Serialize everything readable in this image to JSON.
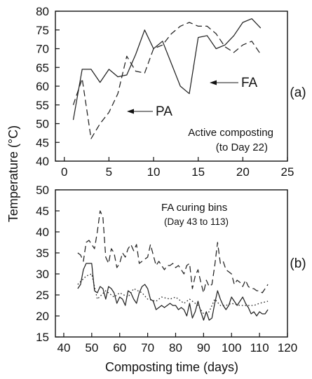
{
  "chart_data": [
    {
      "type": "line",
      "panel_label": "(a)",
      "xlim": [
        -1,
        25
      ],
      "ylim": [
        40,
        80
      ],
      "xticks": [
        0,
        5,
        10,
        15,
        20,
        25
      ],
      "yticks": [
        40,
        45,
        50,
        55,
        60,
        65,
        70,
        75,
        80
      ],
      "annotation_lines": [
        "Active composting",
        "(to Day 22)"
      ],
      "series": [
        {
          "name": "FA",
          "style": "solid",
          "x": [
            1,
            2,
            3,
            4,
            5,
            6,
            7,
            8,
            9,
            10,
            11,
            12,
            13,
            14,
            15,
            16,
            17,
            18,
            19,
            20,
            21,
            22
          ],
          "y": [
            51,
            64.5,
            64.5,
            61,
            64.5,
            62.5,
            63,
            68.5,
            75,
            70,
            72,
            66,
            60,
            58,
            73,
            73.5,
            70,
            71,
            73.5,
            77,
            78,
            75.5
          ]
        },
        {
          "name": "PA",
          "style": "dashed",
          "x": [
            1,
            2,
            3,
            4,
            5,
            6,
            7,
            8,
            9,
            10,
            11,
            12,
            13,
            14,
            15,
            16,
            17,
            18,
            19,
            20,
            21,
            22
          ],
          "y": [
            55,
            62,
            46,
            50,
            53,
            58,
            68,
            64,
            63.5,
            70,
            71,
            74,
            76,
            77,
            76,
            76,
            74,
            70.5,
            69,
            71,
            72,
            68.5
          ]
        }
      ]
    },
    {
      "type": "line",
      "panel_label": "(b)",
      "xlim": [
        37,
        120
      ],
      "ylim": [
        15,
        50
      ],
      "xticks": [
        40,
        50,
        60,
        70,
        80,
        90,
        100,
        110,
        120
      ],
      "yticks": [
        15,
        20,
        25,
        30,
        35,
        40,
        45,
        50
      ],
      "annotation_lines": [
        "FA curing bins",
        "(Day 43 to 113)"
      ],
      "series": [
        {
          "style": "dashed",
          "x": [
            45,
            46,
            47,
            48,
            49,
            50,
            51,
            52,
            53,
            54,
            55,
            56,
            57,
            58,
            59,
            60,
            61,
            62,
            63,
            64,
            65,
            66,
            67,
            68,
            69,
            70,
            71,
            72,
            73,
            74,
            75,
            76,
            77,
            78,
            79,
            80,
            81,
            82,
            83,
            84,
            85,
            86,
            87,
            88,
            89,
            90,
            91,
            92,
            93,
            94,
            95,
            96,
            97,
            98,
            99,
            100,
            101,
            102,
            103,
            104,
            105,
            106,
            107,
            108,
            109,
            110,
            111,
            112,
            113
          ],
          "y": [
            35,
            34.5,
            33,
            37.5,
            38,
            37,
            36,
            40,
            45,
            43.5,
            34,
            32.5,
            36,
            35,
            31.5,
            32.5,
            35,
            34,
            36,
            37,
            35.5,
            37,
            32.5,
            33,
            33.5,
            34,
            37,
            34.5,
            32,
            33,
            32,
            31,
            32,
            32,
            32.5,
            31.5,
            32,
            31,
            30,
            32,
            32.5,
            26.5,
            29.5,
            31,
            28,
            25.5,
            28.5,
            27,
            27.5,
            32,
            37.5,
            32.5,
            33,
            31,
            30.5,
            30,
            27.5,
            28.5,
            28,
            27,
            28.5,
            27,
            26.5,
            26.5,
            26,
            26,
            25.5,
            26.5,
            27.5
          ]
        },
        {
          "style": "solid",
          "x": [
            45,
            46,
            47,
            48,
            49,
            50,
            51,
            52,
            53,
            54,
            55,
            56,
            57,
            58,
            59,
            60,
            61,
            62,
            63,
            64,
            65,
            66,
            67,
            68,
            69,
            70,
            71,
            72,
            73,
            74,
            75,
            76,
            77,
            78,
            79,
            80,
            81,
            82,
            83,
            84,
            85,
            86,
            87,
            88,
            89,
            90,
            91,
            92,
            93,
            94,
            95,
            96,
            97,
            98,
            99,
            100,
            101,
            102,
            103,
            104,
            105,
            106,
            107,
            108,
            109,
            110,
            111,
            112,
            113
          ],
          "y": [
            26.5,
            27.5,
            31,
            32.5,
            32.5,
            32.5,
            26,
            25.5,
            27,
            26.5,
            24,
            27,
            26.5,
            25.5,
            23,
            24.5,
            24,
            22.5,
            26,
            25.5,
            24,
            23,
            25.5,
            27,
            27.5,
            26.5,
            24,
            23.5,
            21.5,
            22,
            22.5,
            22,
            22.5,
            23,
            22.5,
            22.5,
            21.5,
            22,
            21.5,
            20,
            23,
            19.5,
            21,
            23.5,
            21,
            19,
            21,
            19,
            19.5,
            23,
            26,
            24,
            22.5,
            21.5,
            22.5,
            24.5,
            23.5,
            22.5,
            23.5,
            24.5,
            23,
            22,
            20.5,
            21,
            20,
            21,
            20.5,
            20.5,
            21.5
          ]
        },
        {
          "style": "dotted",
          "x": [
            45,
            48,
            50,
            52,
            55,
            58,
            60,
            63,
            65,
            68,
            70,
            73,
            75,
            78,
            80,
            83,
            85,
            88,
            90,
            92,
            94,
            96,
            98,
            100,
            103,
            105,
            108,
            110,
            113
          ],
          "y": [
            27.5,
            29.5,
            30,
            24,
            26,
            24.5,
            25.5,
            24.5,
            26.5,
            25.5,
            24,
            23.5,
            24.5,
            24,
            24.5,
            23,
            24,
            22.5,
            20.5,
            21,
            24,
            22.5,
            22.5,
            23,
            22.5,
            22.5,
            22.5,
            23,
            23.5
          ]
        }
      ]
    }
  ],
  "shared_labels": {
    "ylabel": "Temperature (°C)",
    "xlabel": "Composting time (days)"
  }
}
